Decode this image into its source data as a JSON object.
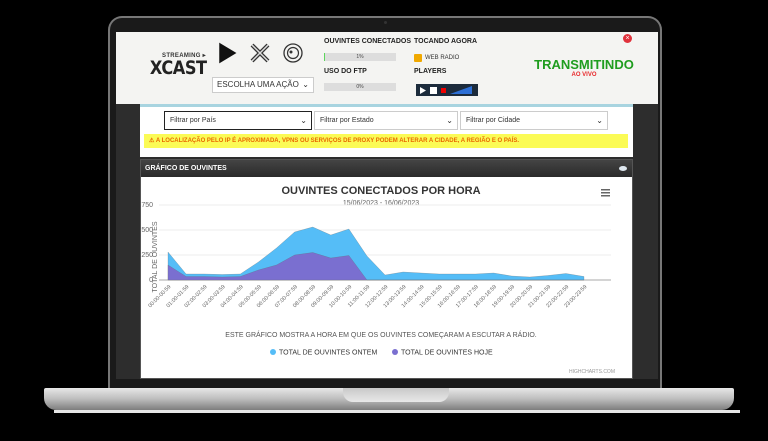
{
  "brand": {
    "small": "STREAMING ▸",
    "name": "XCAST"
  },
  "controls": {
    "play_icon": "play-icon",
    "stop_icon": "x-icon",
    "disk_icon": "disc-icon",
    "action_select": "ESCOLHA UMA AÇÃO"
  },
  "stats": {
    "listeners_label": "OUVINTES CONECTADOS",
    "listeners_value": "1%",
    "ftp_label": "USO DO FTP",
    "ftp_value": "0%",
    "now_playing_label": "TOCANDO AGORA",
    "now_playing_value": "WEB RADIO",
    "players_label": "PLAYERS"
  },
  "status": {
    "title": "TRANSMITINDO",
    "subtitle": "AO VIVO",
    "colors": {
      "title": "#1f9d1f",
      "subtitle": "#e8282b"
    }
  },
  "filters": {
    "country": "Filtrar por País",
    "state": "Filtrar por Estado",
    "city": "Filtrar por Cidade"
  },
  "warning": "A LOCALIZAÇÃO PELO IP É APROXIMADA, VPNS OU SERVIÇOS DE PROXY PODEM ALTERAR A CIDADE, A REGIÃO E O PAÍS.",
  "panel_title": "GRÁFICO DE OUVINTES",
  "chart_data": {
    "type": "area",
    "title": "OUVINTES CONECTADOS POR HORA",
    "subtitle": "15/06/2023 - 16/06/2023",
    "ylabel": "TOTAL DE OUVINTES",
    "xlabel": "ESTE GRÁFICO MOSTRA A HORA EM QUE OS OUVINTES COMEÇARAM A ESCUTAR A RÁDIO.",
    "ylim": [
      0,
      750
    ],
    "yticks": [
      0,
      250,
      500,
      750
    ],
    "grid": true,
    "legend_position": "bottom",
    "credits": "HIGHCHARTS.COM",
    "categories": [
      "00:00-00:59",
      "01:00-01:59",
      "02:00-02:59",
      "03:00-03:59",
      "04:00-04:59",
      "05:00-05:59",
      "06:00-06:59",
      "07:00-07:59",
      "08:00-08:59",
      "09:00-09:59",
      "10:00-10:59",
      "11:00-11:59",
      "12:00-12:59",
      "13:00-13:59",
      "14:00-14:59",
      "15:00-15:59",
      "16:00-16:59",
      "17:00-17:59",
      "18:00-18:59",
      "19:00-19:59",
      "20:00-20:59",
      "21:00-21:59",
      "22:00-22:59",
      "23:00-23:59"
    ],
    "series": [
      {
        "name": "TOTAL DE OUVINTES ONTEM",
        "color": "#55bdf7",
        "values": [
          280,
          60,
          60,
          55,
          60,
          180,
          320,
          480,
          530,
          450,
          510,
          240,
          50,
          80,
          70,
          60,
          60,
          60,
          70,
          40,
          30,
          45,
          65,
          35
        ]
      },
      {
        "name": "TOTAL DE OUVINTES HOJE",
        "color": "#7a6fd0",
        "values": [
          150,
          35,
          35,
          30,
          35,
          100,
          150,
          250,
          275,
          220,
          245,
          0,
          0,
          0,
          0,
          0,
          0,
          0,
          0,
          0,
          0,
          0,
          0,
          0
        ]
      }
    ]
  }
}
